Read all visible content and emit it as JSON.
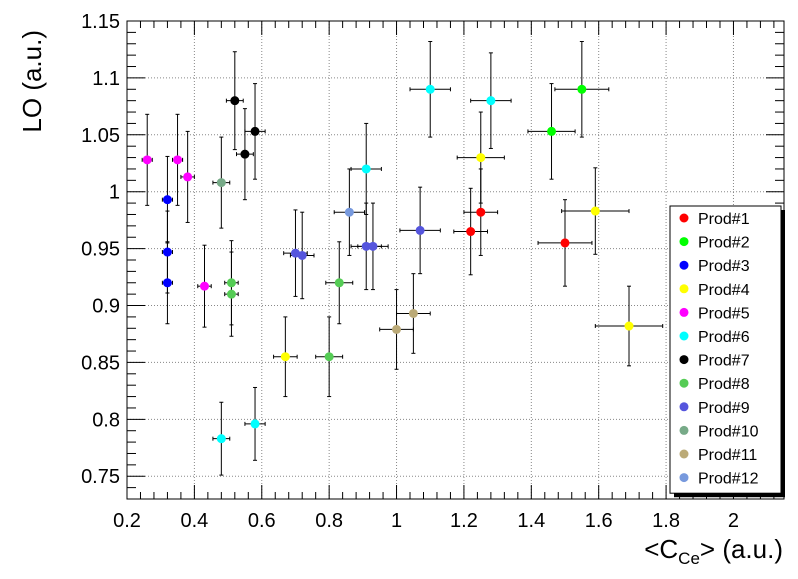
{
  "chart_data": {
    "type": "scatter",
    "title": "",
    "xlabel_parts": [
      "<C",
      "Ce",
      "> (a.u.)"
    ],
    "ylabel": "LO (a.u.)",
    "xlim": [
      0.2,
      2.15
    ],
    "ylim": [
      0.73,
      1.15
    ],
    "xticks_major": [
      0.2,
      0.4,
      0.6,
      0.8,
      1,
      1.2,
      1.4,
      1.6,
      1.8,
      2
    ],
    "xtick_labels": [
      "0.2",
      "0.4",
      "0.6",
      "0.8",
      "1",
      "1.2",
      "1.4",
      "1.6",
      "1.8",
      "2"
    ],
    "yticks_major": [
      0.75,
      0.8,
      0.85,
      0.9,
      0.95,
      1,
      1.05,
      1.1,
      1.15
    ],
    "ytick_labels": [
      "0.75",
      "0.8",
      "0.85",
      "0.9",
      "0.95",
      "1",
      "1.05",
      "1.1",
      "1.15"
    ],
    "grid": true,
    "legend_position": "right-middle",
    "series": [
      {
        "name": "Prod#1",
        "color": "#ff0000",
        "points": [
          {
            "x": 1.25,
            "y": 0.982,
            "xerr": 0.05,
            "yerr": 0.038
          },
          {
            "x": 1.22,
            "y": 0.965,
            "xerr": 0.05,
            "yerr": 0.038
          },
          {
            "x": 1.5,
            "y": 0.955,
            "xerr": 0.08,
            "yerr": 0.038
          }
        ]
      },
      {
        "name": "Prod#2",
        "color": "#00ff00",
        "points": [
          {
            "x": 1.55,
            "y": 1.09,
            "xerr": 0.08,
            "yerr": 0.042
          },
          {
            "x": 1.46,
            "y": 1.053,
            "xerr": 0.07,
            "yerr": 0.042
          }
        ]
      },
      {
        "name": "Prod#3",
        "color": "#0000ff",
        "points": [
          {
            "x": 0.32,
            "y": 0.993,
            "xerr": 0.015,
            "yerr": 0.038
          },
          {
            "x": 0.32,
            "y": 0.947,
            "xerr": 0.015,
            "yerr": 0.036
          },
          {
            "x": 0.32,
            "y": 0.92,
            "xerr": 0.015,
            "yerr": 0.036
          }
        ]
      },
      {
        "name": "Prod#4",
        "color": "#ffff00",
        "points": [
          {
            "x": 1.25,
            "y": 1.03,
            "xerr": 0.07,
            "yerr": 0.04
          },
          {
            "x": 1.59,
            "y": 0.983,
            "xerr": 0.1,
            "yerr": 0.038
          },
          {
            "x": 1.69,
            "y": 0.882,
            "xerr": 0.1,
            "yerr": 0.035
          },
          {
            "x": 0.67,
            "y": 0.855,
            "xerr": 0.035,
            "yerr": 0.035
          }
        ]
      },
      {
        "name": "Prod#5",
        "color": "#ff00ff",
        "points": [
          {
            "x": 0.26,
            "y": 1.028,
            "xerr": 0.015,
            "yerr": 0.04
          },
          {
            "x": 0.35,
            "y": 1.028,
            "xerr": 0.015,
            "yerr": 0.04
          },
          {
            "x": 0.38,
            "y": 1.013,
            "xerr": 0.02,
            "yerr": 0.04
          },
          {
            "x": 0.43,
            "y": 0.917,
            "xerr": 0.02,
            "yerr": 0.036
          }
        ]
      },
      {
        "name": "Prod#6",
        "color": "#00ffff",
        "points": [
          {
            "x": 1.1,
            "y": 1.09,
            "xerr": 0.06,
            "yerr": 0.042
          },
          {
            "x": 1.28,
            "y": 1.08,
            "xerr": 0.06,
            "yerr": 0.042
          },
          {
            "x": 0.91,
            "y": 1.02,
            "xerr": 0.045,
            "yerr": 0.04
          },
          {
            "x": 0.48,
            "y": 0.783,
            "xerr": 0.025,
            "yerr": 0.032
          },
          {
            "x": 0.58,
            "y": 0.796,
            "xerr": 0.03,
            "yerr": 0.032
          }
        ]
      },
      {
        "name": "Prod#7",
        "color": "#000000",
        "points": [
          {
            "x": 0.52,
            "y": 1.08,
            "xerr": 0.025,
            "yerr": 0.043
          },
          {
            "x": 0.58,
            "y": 1.053,
            "xerr": 0.03,
            "yerr": 0.042
          },
          {
            "x": 0.55,
            "y": 1.033,
            "xerr": 0.025,
            "yerr": 0.04
          }
        ]
      },
      {
        "name": "Prod#8",
        "color": "#55cc55",
        "points": [
          {
            "x": 0.51,
            "y": 0.92,
            "xerr": 0.02,
            "yerr": 0.037
          },
          {
            "x": 0.51,
            "y": 0.91,
            "xerr": 0.02,
            "yerr": 0.037
          },
          {
            "x": 0.83,
            "y": 0.92,
            "xerr": 0.04,
            "yerr": 0.036
          },
          {
            "x": 0.8,
            "y": 0.855,
            "xerr": 0.04,
            "yerr": 0.035
          }
        ]
      },
      {
        "name": "Prod#9",
        "color": "#5555dd",
        "points": [
          {
            "x": 1.07,
            "y": 0.966,
            "xerr": 0.06,
            "yerr": 0.038
          },
          {
            "x": 0.7,
            "y": 0.946,
            "xerr": 0.035,
            "yerr": 0.038
          },
          {
            "x": 0.72,
            "y": 0.944,
            "xerr": 0.035,
            "yerr": 0.038
          },
          {
            "x": 0.91,
            "y": 0.952,
            "xerr": 0.045,
            "yerr": 0.038
          },
          {
            "x": 0.93,
            "y": 0.952,
            "xerr": 0.045,
            "yerr": 0.038
          }
        ]
      },
      {
        "name": "Prod#10",
        "color": "#77aa88",
        "points": [
          {
            "x": 0.48,
            "y": 1.008,
            "xerr": 0.025,
            "yerr": 0.04
          }
        ]
      },
      {
        "name": "Prod#11",
        "color": "#bbaa77",
        "points": [
          {
            "x": 1.0,
            "y": 0.879,
            "xerr": 0.05,
            "yerr": 0.035
          },
          {
            "x": 1.05,
            "y": 0.893,
            "xerr": 0.05,
            "yerr": 0.035
          }
        ]
      },
      {
        "name": "Prod#12",
        "color": "#7799dd",
        "points": [
          {
            "x": 0.86,
            "y": 0.982,
            "xerr": 0.045,
            "yerr": 0.038
          }
        ]
      }
    ]
  }
}
